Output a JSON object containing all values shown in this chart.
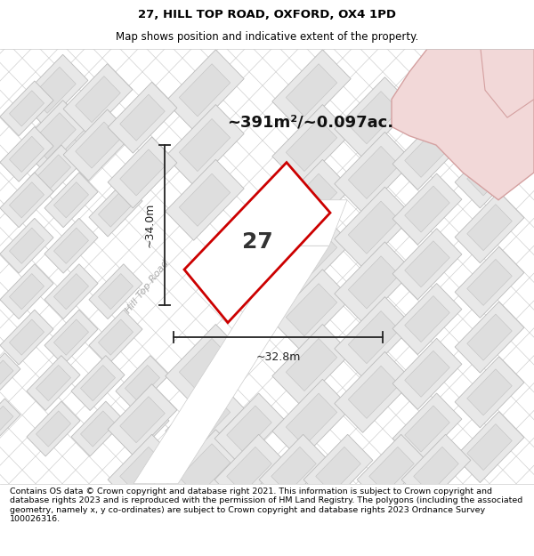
{
  "title_line1": "27, HILL TOP ROAD, OXFORD, OX4 1PD",
  "title_line2": "Map shows position and indicative extent of the property.",
  "area_text": "~391m²/~0.097ac.",
  "property_number": "27",
  "dim_height": "~34.0m",
  "dim_width": "~32.8m",
  "road_label": "Hill Top Road",
  "footer_text": "Contains OS data © Crown copyright and database right 2021. This information is subject to Crown copyright and database rights 2023 and is reproduced with the permission of HM Land Registry. The polygons (including the associated geometry, namely x, y co-ordinates) are subject to Crown copyright and database rights 2023 Ordnance Survey 100026316.",
  "title_fontsize": 9.5,
  "subtitle_fontsize": 8.5,
  "footer_fontsize": 6.8,
  "map_bg": "#f5f5f5",
  "parcel_fill": "#eeeeee",
  "parcel_edge": "#cccccc",
  "pink_fill": "#f2d8d8",
  "pink_edge": "#d4a0a0",
  "road_fill": "#ffffff",
  "property_fill": "#ffffff",
  "property_edge": "#cc0000",
  "dim_color": "#222222",
  "text_color": "#333333",
  "road_label_color": "#aaaaaa",
  "title_bg": "#ffffff",
  "footer_bg": "#ffffff"
}
